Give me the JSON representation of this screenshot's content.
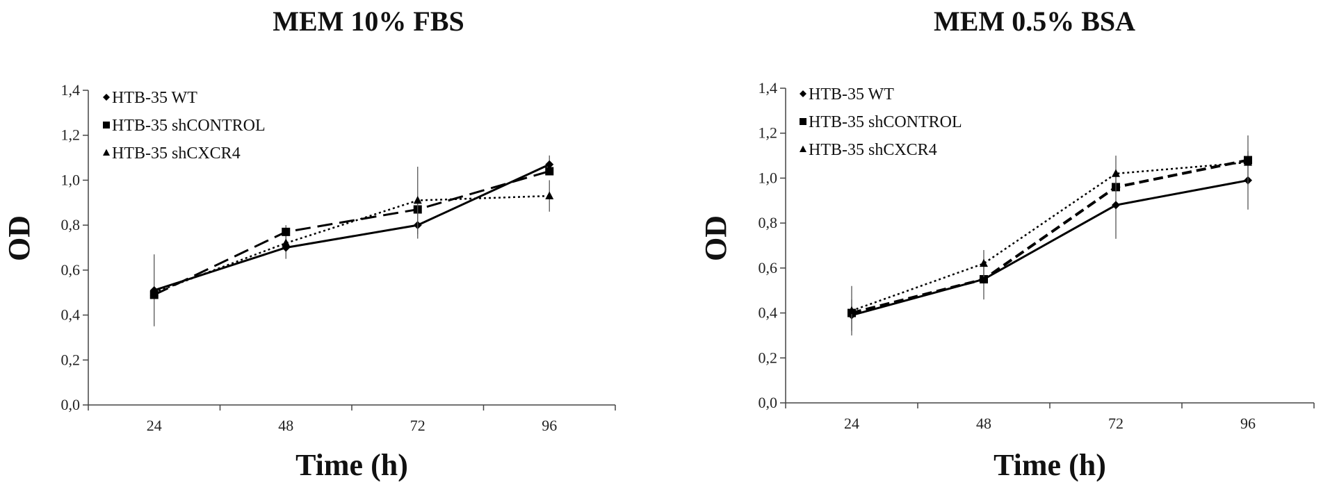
{
  "chart_data": [
    {
      "type": "line",
      "title": "MEM 10% FBS",
      "xlabel": "Time (h)",
      "ylabel": "OD",
      "categories": [
        "24",
        "48",
        "72",
        "96"
      ],
      "y_ticks": [
        "0,0",
        "0,2",
        "0,4",
        "0,6",
        "0,8",
        "1,0",
        "1,2",
        "1,4"
      ],
      "ylim": [
        0,
        1.4
      ],
      "grid": false,
      "legend_position": "top-left",
      "series": [
        {
          "name": "HTB-35 WT",
          "values": [
            0.51,
            0.7,
            0.8,
            1.07
          ],
          "error": [
            0.16,
            0.05,
            0.06,
            0.04
          ],
          "marker": "diamond",
          "line": "solid"
        },
        {
          "name": "HTB-35 shCONTROL",
          "values": [
            0.49,
            0.77,
            0.87,
            1.04
          ],
          "error": [
            0,
            0.03,
            0,
            0
          ],
          "marker": "square",
          "line": "long-dash"
        },
        {
          "name": "HTB-35 shCXCR4",
          "values": [
            0.5,
            0.72,
            0.91,
            0.93
          ],
          "error": [
            0,
            0,
            0.15,
            0.07
          ],
          "marker": "triangle",
          "line": "dotted"
        }
      ]
    },
    {
      "type": "line",
      "title": "MEM 0.5% BSA",
      "xlabel": "Time (h)",
      "ylabel": "OD",
      "categories": [
        "24",
        "48",
        "72",
        "96"
      ],
      "y_ticks": [
        "0,0",
        "0,2",
        "0,4",
        "0,6",
        "0,8",
        "1,0",
        "1,2",
        "1,4"
      ],
      "ylim": [
        0,
        1.4
      ],
      "grid": false,
      "legend_position": "top-left",
      "series": [
        {
          "name": "HTB-35 WT",
          "values": [
            0.39,
            0.55,
            0.88,
            0.99
          ],
          "error": [
            0.07,
            0,
            0.15,
            0.13
          ],
          "marker": "diamond",
          "line": "solid"
        },
        {
          "name": "HTB-35 shCONTROL",
          "values": [
            0.4,
            0.55,
            0.96,
            1.08
          ],
          "error": [
            0,
            0.09,
            0,
            0.11
          ],
          "marker": "square",
          "line": "dashed"
        },
        {
          "name": "HTB-35 shCXCR4",
          "values": [
            0.41,
            0.62,
            1.02,
            1.07
          ],
          "error": [
            0.11,
            0.06,
            0.08,
            0
          ],
          "marker": "triangle",
          "line": "dotted"
        }
      ]
    }
  ]
}
